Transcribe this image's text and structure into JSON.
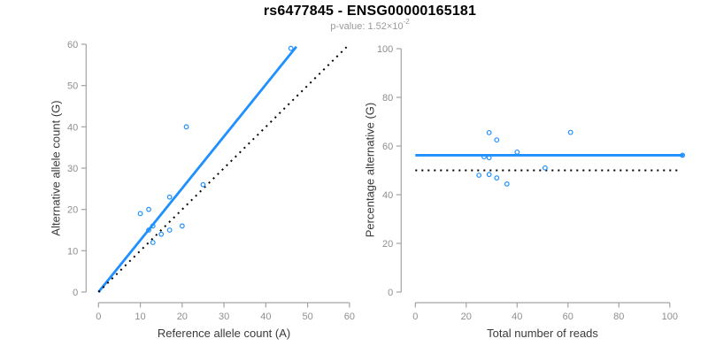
{
  "header": {
    "title": "rs6477845 - ENSG00000165181",
    "pvalue_prefix": "p-value: 1.52×10",
    "pvalue_exponent": "-2"
  },
  "colors": {
    "accent_blue": "#1E90FF",
    "identity_black": "#000000",
    "axis_line": "#a3a3a3",
    "tick_label": "#8f8f8f",
    "axis_title": "#3a3a3a",
    "title": "#000000",
    "subtitle": "#9a9a9a",
    "background": "#ffffff"
  },
  "chart_data": [
    {
      "type": "scatter",
      "name": "allele-counts-plot",
      "xlabel": "Reference allele count (A)",
      "ylabel": "Alternative allele count (G)",
      "xlim": [
        0,
        60
      ],
      "ylim": [
        0,
        60
      ],
      "xticks": [
        0,
        10,
        20,
        30,
        40,
        50,
        60
      ],
      "yticks": [
        0,
        10,
        20,
        30,
        40,
        50,
        60
      ],
      "grid": false,
      "points": [
        [
          10,
          19
        ],
        [
          12,
          20
        ],
        [
          12,
          15
        ],
        [
          13,
          16
        ],
        [
          13,
          12
        ],
        [
          15,
          14
        ],
        [
          17,
          15
        ],
        [
          17,
          23
        ],
        [
          20,
          16
        ],
        [
          21,
          40
        ],
        [
          25,
          26
        ],
        [
          46,
          59
        ]
      ],
      "lines": [
        {
          "name": "regression-line",
          "style": "solid",
          "color_key": "accent_blue",
          "from": [
            0,
            0
          ],
          "to": [
            47.3,
            59.4
          ]
        },
        {
          "name": "identity-line",
          "style": "dotted",
          "color_key": "identity_black",
          "from": [
            0,
            0
          ],
          "to": [
            60,
            60
          ]
        }
      ]
    },
    {
      "type": "scatter",
      "name": "percentage-plot",
      "xlabel": "Total number of reads",
      "ylabel": "Percentage alternative (G)",
      "xlim": [
        0,
        105
      ],
      "ylim": [
        0,
        100
      ],
      "xticks": [
        0,
        20,
        40,
        60,
        80,
        100
      ],
      "yticks": [
        0,
        20,
        40,
        60,
        80,
        100
      ],
      "grid": false,
      "points": [
        [
          29,
          65.5
        ],
        [
          32,
          62.5
        ],
        [
          40,
          57.5
        ],
        [
          27,
          55.6
        ],
        [
          29,
          55.2
        ],
        [
          25,
          48.0
        ],
        [
          29,
          48.3
        ],
        [
          32,
          46.9
        ],
        [
          36,
          44.4
        ],
        [
          61,
          65.6
        ],
        [
          51,
          51.0
        ],
        [
          105,
          56.2
        ]
      ],
      "lines": [
        {
          "name": "mean-percentage-line",
          "style": "solid",
          "color_key": "accent_blue",
          "from": [
            0,
            56.2
          ],
          "to": [
            105.5,
            56.2
          ]
        },
        {
          "name": "fifty-percent-line",
          "style": "dotted",
          "color_key": "identity_black",
          "from": [
            0,
            50
          ],
          "to": [
            103.5,
            50
          ]
        }
      ]
    }
  ]
}
